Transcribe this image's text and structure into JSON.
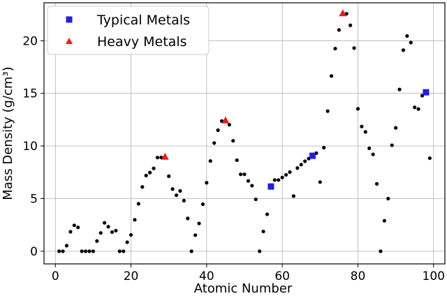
{
  "chart_data": {
    "type": "scatter",
    "title": "",
    "xlabel": "Atomic Number",
    "ylabel": "Mass Density (g/cm³)",
    "xlim": [
      -3,
      103
    ],
    "ylim": [
      -1.2,
      23.6
    ],
    "xticks": [
      0,
      20,
      40,
      60,
      80,
      100
    ],
    "yticks": [
      0,
      5,
      10,
      15,
      20
    ],
    "grid": true,
    "legend_position": "top-left",
    "series": [
      {
        "name": "",
        "marker": "dot",
        "color": "#000000",
        "x": [
          1,
          2,
          3,
          4,
          5,
          6,
          7,
          8,
          9,
          10,
          11,
          12,
          13,
          14,
          15,
          16,
          17,
          18,
          19,
          20,
          21,
          22,
          23,
          24,
          25,
          26,
          27,
          28,
          30,
          31,
          32,
          33,
          34,
          35,
          36,
          37,
          38,
          39,
          40,
          41,
          42,
          43,
          44,
          46,
          47,
          48,
          49,
          50,
          51,
          52,
          53,
          54,
          55,
          56,
          58,
          59,
          60,
          61,
          62,
          63,
          64,
          65,
          66,
          67,
          69,
          70,
          71,
          72,
          73,
          74,
          75,
          77,
          78,
          79,
          80,
          81,
          82,
          83,
          84,
          85,
          86,
          87,
          88,
          89,
          90,
          91,
          92,
          93,
          94,
          95,
          96,
          97,
          99
        ],
        "y": [
          0,
          0,
          0.53,
          1.85,
          2.46,
          2.27,
          0,
          0,
          0,
          0,
          0.97,
          1.74,
          2.7,
          2.33,
          1.82,
          1.96,
          0,
          0,
          0.86,
          1.55,
          2.99,
          4.51,
          6.11,
          7.19,
          7.47,
          7.87,
          8.9,
          8.91,
          7.13,
          5.91,
          5.32,
          5.73,
          4.81,
          3.12,
          0,
          1.53,
          2.64,
          4.47,
          6.51,
          8.57,
          10.28,
          11.5,
          12.37,
          12.02,
          10.49,
          8.65,
          7.31,
          7.31,
          6.68,
          6.23,
          4.93,
          0,
          1.88,
          3.51,
          6.77,
          6.77,
          7.01,
          7.26,
          7.52,
          5.24,
          7.9,
          8.23,
          8.55,
          8.8,
          9.32,
          6.57,
          9.84,
          13.31,
          16.65,
          19.25,
          21.02,
          22.56,
          21.46,
          19.3,
          13.53,
          11.85,
          11.34,
          9.78,
          9.2,
          6.4,
          0,
          2.9,
          5,
          10.07,
          11.72,
          15.37,
          19.1,
          20.45,
          19.82,
          13.67,
          13.51,
          14.78,
          8.84
        ]
      },
      {
        "name": "Typical Metals",
        "marker": "square",
        "color": "#1f1fe0",
        "x": [
          57,
          68,
          98
        ],
        "y": [
          6.15,
          9.07,
          15.1
        ]
      },
      {
        "name": "Heavy Metals",
        "marker": "triangle",
        "color": "#e81d1d",
        "x": [
          29,
          45,
          76
        ],
        "y": [
          8.96,
          12.41,
          22.59
        ]
      }
    ]
  }
}
